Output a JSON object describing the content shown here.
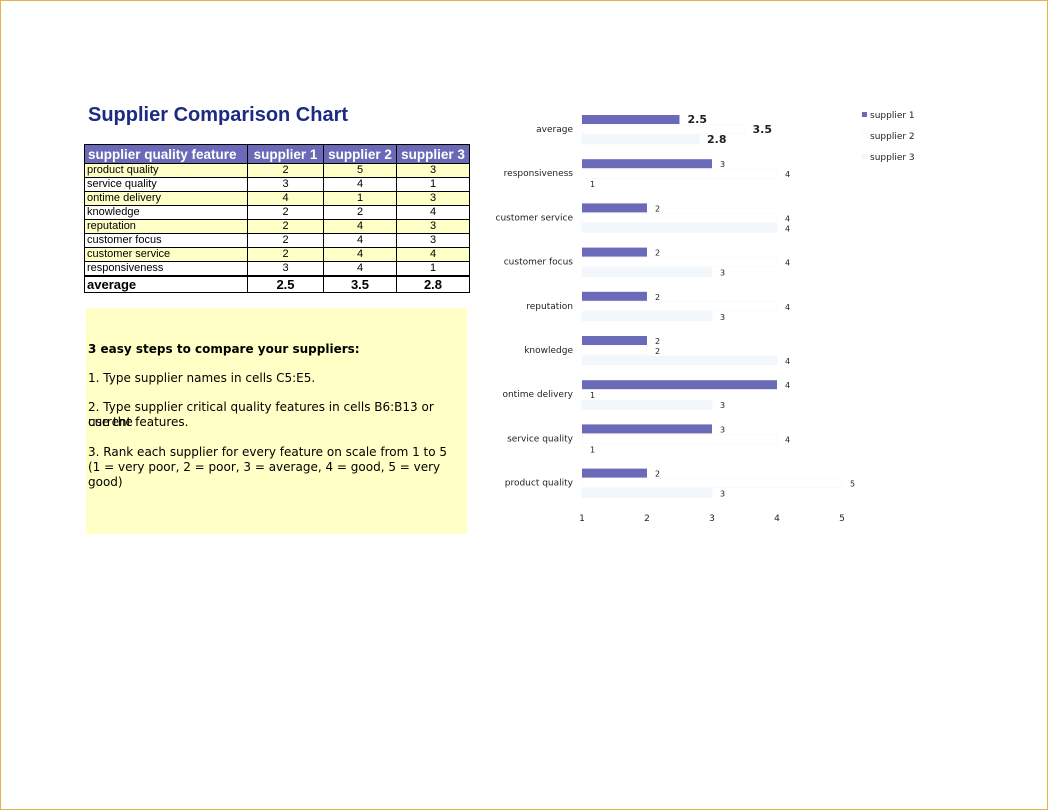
{
  "title": "Supplier Comparison Chart",
  "table": {
    "headers": [
      "supplier quality feature",
      "supplier 1",
      "supplier 2",
      "supplier 3"
    ],
    "rows": [
      [
        "product quality",
        "2",
        "5",
        "3"
      ],
      [
        "service quality",
        "3",
        "4",
        "1"
      ],
      [
        "ontime delivery",
        "4",
        "1",
        "3"
      ],
      [
        "knowledge",
        "2",
        "2",
        "4"
      ],
      [
        "reputation",
        "2",
        "4",
        "3"
      ],
      [
        "customer focus",
        "2",
        "4",
        "3"
      ],
      [
        "customer service",
        "2",
        "4",
        "4"
      ],
      [
        "responsiveness",
        "3",
        "4",
        "1"
      ]
    ],
    "average": [
      "average",
      "2.5",
      "3.5",
      "2.8"
    ]
  },
  "steps": {
    "heading": "3 easy steps to compare your suppliers:",
    "step1": "1. Type supplier names in cells C5:E5.",
    "step2a": "2. Type supplier critical quality features in cells B6:B13 or use the",
    "step2b": "current features.",
    "step3a": "3. Rank each supplier for every feature on scale from 1 to 5",
    "step3b": "(1 = very poor, 2 = poor, 3 = average, 4 = good, 5 = very good)"
  },
  "colors": {
    "supplier1": "#6b6ab8",
    "supplier2": "#ffffff",
    "supplier3": "#f2f7fb",
    "header_bg": "#6b6ab8",
    "row_highlight": "#ffffc8",
    "title": "#1c2b82"
  },
  "chart_data": {
    "type": "bar",
    "orientation": "horizontal",
    "categories": [
      "average",
      "responsiveness",
      "customer service",
      "customer focus",
      "reputation",
      "knowledge",
      "ontime delivery",
      "service quality",
      "product quality"
    ],
    "series": [
      {
        "name": "supplier 1",
        "values": [
          2.5,
          3,
          2,
          2,
          2,
          2,
          4,
          3,
          2
        ]
      },
      {
        "name": "supplier 2",
        "values": [
          3.5,
          4,
          4,
          4,
          4,
          2,
          1,
          4,
          5
        ]
      },
      {
        "name": "supplier 3",
        "values": [
          2.8,
          1,
          4,
          3,
          3,
          4,
          3,
          1,
          3
        ]
      }
    ],
    "xlim": [
      1,
      5
    ],
    "xticks": [
      "1",
      "2",
      "3",
      "4",
      "5"
    ],
    "legend": "top-right",
    "grid": false
  }
}
